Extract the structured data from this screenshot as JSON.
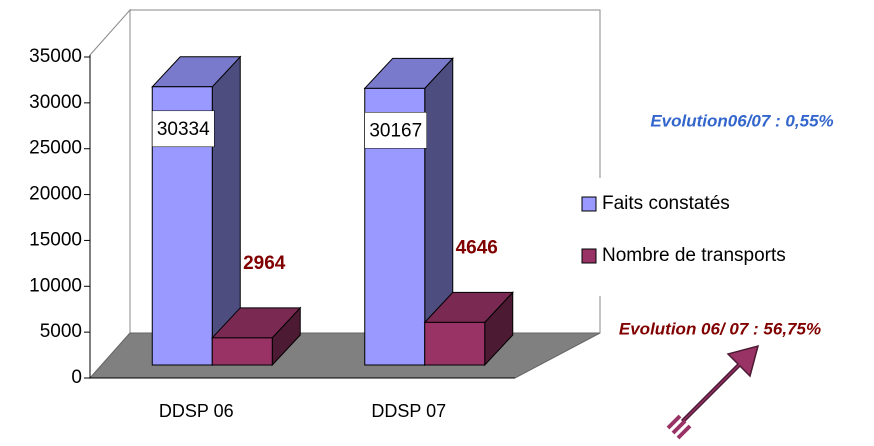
{
  "chart_data": {
    "type": "bar3d",
    "categories": [
      "DDSP 06",
      "DDSP 07"
    ],
    "series": [
      {
        "name": "Faits constatés",
        "color": "#9999ff",
        "values": [
          30334,
          30167
        ]
      },
      {
        "name": "Nombre de transports",
        "color": "#993366",
        "values": [
          2964,
          4646
        ]
      }
    ],
    "ylim": [
      0,
      35000
    ],
    "yticks": [
      0,
      5000,
      10000,
      15000,
      20000,
      25000,
      30000,
      35000
    ],
    "annotations": [
      "Evolution06/07 : 0,55%",
      "Evolution 06/ 07 : 56,75%"
    ]
  }
}
